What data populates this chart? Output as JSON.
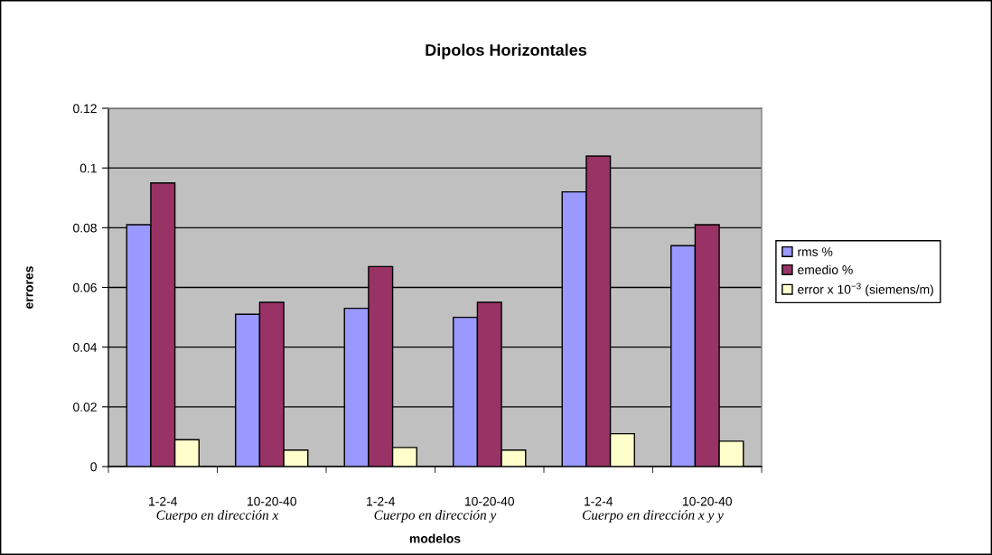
{
  "chart_data": {
    "type": "bar",
    "title": "Dipolos Horizontales",
    "xlabel": "modelos",
    "ylabel": "errores",
    "categories": [
      "1-2-4",
      "10-20-40",
      "1-2-4",
      "10-20-40",
      "1-2-4",
      "10-20-40"
    ],
    "series": [
      {
        "name": "rms %",
        "color": "#9999ff",
        "values": [
          0.081,
          0.051,
          0.053,
          0.05,
          0.092,
          0.074
        ]
      },
      {
        "name": "emedio %",
        "color": "#993366",
        "values": [
          0.095,
          0.055,
          0.067,
          0.055,
          0.104,
          0.081
        ]
      },
      {
        "name": "error x 10$^{−3}$ (siemens/m)",
        "color": "#ffffcc",
        "values": [
          0.009,
          0.0055,
          0.0064,
          0.0055,
          0.011,
          0.0085
        ]
      }
    ],
    "annotations": [
      "Cuerpo en dirección x",
      "Cuerpo en dirección y",
      "Cuerpo en dirección x y y"
    ],
    "ylim": [
      0,
      0.12
    ],
    "yticks": [
      0,
      0.02,
      0.04,
      0.06,
      0.08,
      0.1,
      0.12
    ],
    "grid": "y",
    "legend": "right"
  }
}
